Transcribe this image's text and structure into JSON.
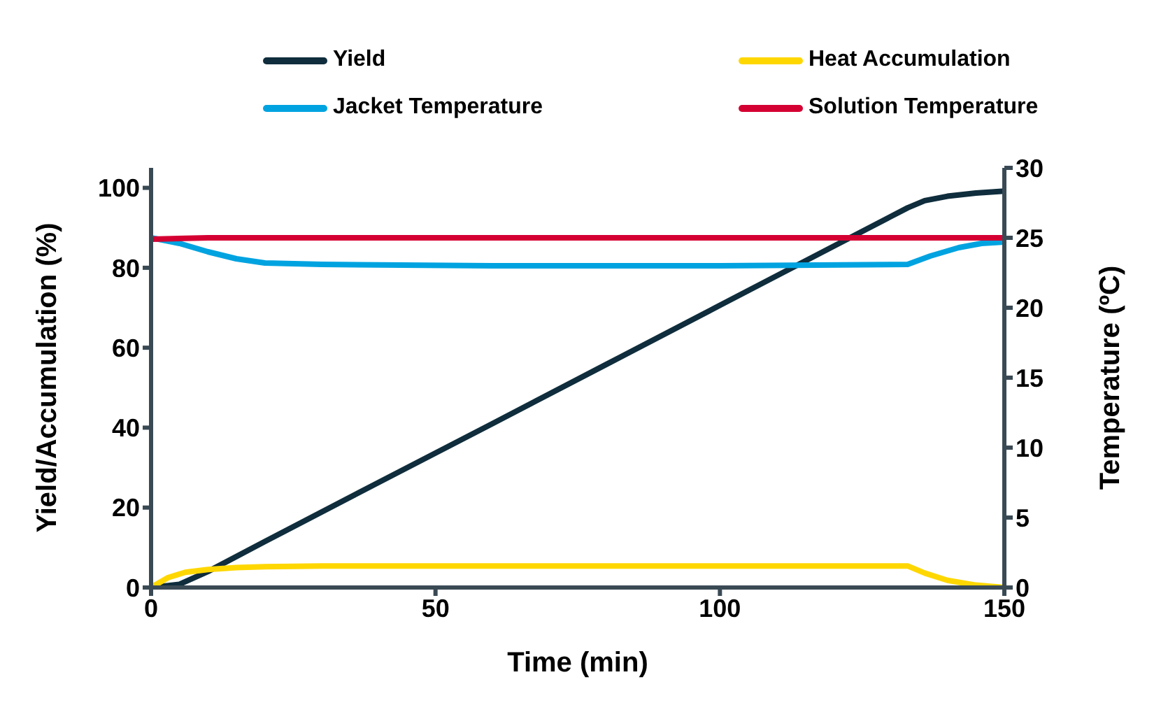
{
  "chart_data": {
    "type": "line",
    "xlabel": "Time (min)",
    "ylabel": "Yield/Accumulation (%)",
    "y2label": "Temperature (ºC)",
    "xlim": [
      0,
      150
    ],
    "xticks": [
      0,
      50,
      100,
      150
    ],
    "ylim": [
      0,
      105
    ],
    "yticks": [
      0,
      20,
      40,
      60,
      80,
      100
    ],
    "y2lim": [
      0,
      30
    ],
    "y2ticks": [
      0,
      5,
      10,
      15,
      20,
      25,
      30
    ],
    "legend": "top",
    "grid": false,
    "marker": "none",
    "line_style": "solid",
    "series": [
      {
        "name": "Yield",
        "color": "#0f2d3c",
        "x": [
          0,
          5,
          10,
          20,
          40,
          60,
          80,
          100,
          120,
          130,
          133,
          136,
          140,
          145,
          150
        ],
        "values": [
          0,
          0.8,
          4,
          11.5,
          26.3,
          41,
          55.8,
          70.6,
          85.4,
          92.8,
          95,
          96.8,
          97.9,
          98.7,
          99.2
        ]
      },
      {
        "name": "Heat Accumulation",
        "color": "#ffd700",
        "x": [
          0,
          3,
          6,
          10,
          15,
          20,
          30,
          60,
          100,
          133,
          136,
          140,
          145,
          150
        ],
        "values": [
          0,
          2.5,
          3.8,
          4.5,
          5,
          5.2,
          5.4,
          5.4,
          5.4,
          5.4,
          3.6,
          1.8,
          0.6,
          0
        ]
      },
      {
        "name": "Jacket Temperature",
        "color": "#00a3e0",
        "axis": "y2",
        "x": [
          0,
          5,
          10,
          15,
          20,
          30,
          60,
          100,
          133,
          137,
          142,
          146,
          150
        ],
        "values": [
          25,
          24.6,
          24,
          23.5,
          23.2,
          23.1,
          23,
          23,
          23.1,
          23.7,
          24.3,
          24.6,
          24.7
        ]
      },
      {
        "name": "Solution Temperature",
        "color": "#d50032",
        "axis": "y2",
        "x": [
          0,
          10,
          100,
          150
        ],
        "values": [
          24.9,
          25,
          25,
          25
        ]
      }
    ]
  }
}
